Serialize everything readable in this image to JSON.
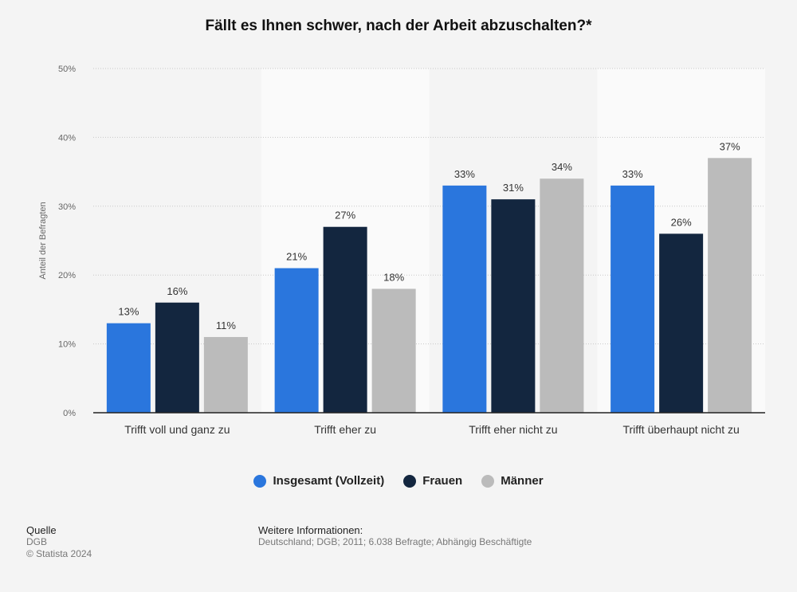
{
  "title": "Fällt es Ihnen schwer, nach der Arbeit abzuschalten?*",
  "chart_data": {
    "type": "bar",
    "title": "Fällt es Ihnen schwer, nach der Arbeit abzuschalten?*",
    "xlabel": "",
    "ylabel": "Anteil der Befragten",
    "ylim": [
      0,
      50
    ],
    "yticks": [
      "0%",
      "10%",
      "20%",
      "30%",
      "40%",
      "50%"
    ],
    "grid": true,
    "legend_position": "bottom",
    "categories": [
      "Trifft voll und ganz zu",
      "Trifft eher zu",
      "Trifft eher nicht zu",
      "Trifft überhaupt nicht zu"
    ],
    "series": [
      {
        "name": "Insgesamt (Vollzeit)",
        "color": "#2a76dd",
        "values": [
          13,
          21,
          33,
          33
        ],
        "labels": [
          "13%",
          "21%",
          "33%",
          "33%"
        ]
      },
      {
        "name": "Frauen",
        "color": "#13263f",
        "values": [
          16,
          27,
          31,
          26
        ],
        "labels": [
          "16%",
          "27%",
          "31%",
          "26%"
        ]
      },
      {
        "name": "Männer",
        "color": "#bbbbbb",
        "values": [
          11,
          18,
          34,
          37
        ],
        "labels": [
          "11%",
          "18%",
          "34%",
          "37%"
        ]
      }
    ]
  },
  "footer": {
    "source_heading": "Quelle",
    "source": "DGB",
    "copyright": "© Statista 2024",
    "info_heading": "Weitere Informationen:",
    "info": "Deutschland; DGB; 2011; 6.038 Befragte; Abhängig Beschäftigte"
  }
}
